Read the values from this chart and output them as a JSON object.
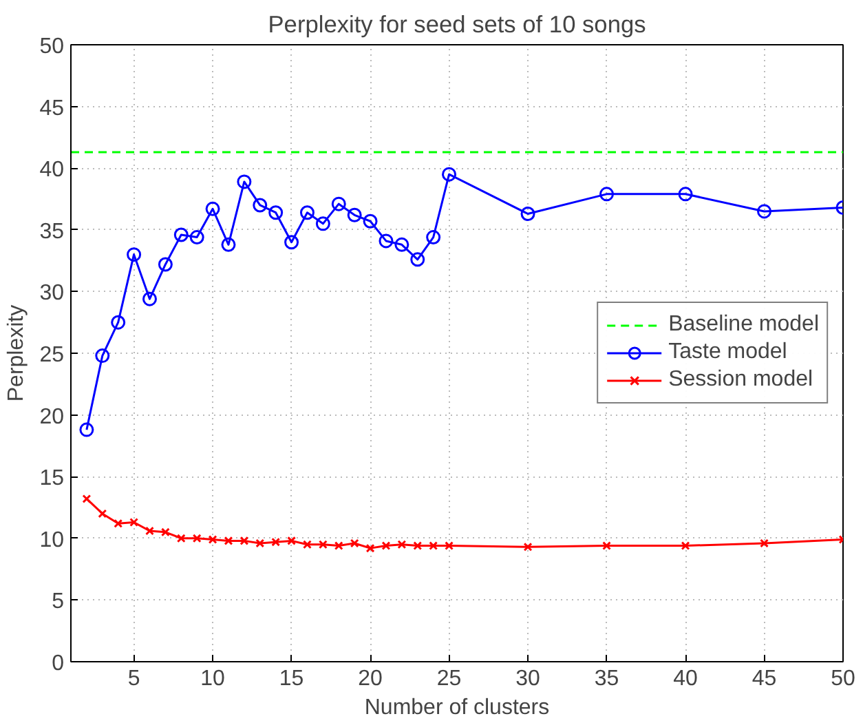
{
  "chart_data": {
    "type": "line",
    "title": "Perplexity for seed sets of 10 songs",
    "xlabel": "Number of clusters",
    "ylabel": "Perplexity",
    "xlim": [
      1,
      50
    ],
    "xticks": [
      5,
      10,
      15,
      20,
      25,
      30,
      35,
      40,
      45,
      50
    ],
    "ylim": [
      0,
      50
    ],
    "yticks": [
      0,
      5,
      10,
      15,
      20,
      25,
      30,
      35,
      40,
      45,
      50
    ],
    "grid": true,
    "legend": "right",
    "series": [
      {
        "name": "Baseline model",
        "color": "#00ff00",
        "x": [
          1,
          50
        ],
        "values": [
          41.3,
          41.3
        ],
        "line_style": "dashed",
        "marker": "none"
      },
      {
        "name": "Taste model",
        "color": "#0000ff",
        "x": [
          2,
          3,
          4,
          5,
          6,
          7,
          8,
          9,
          10,
          11,
          12,
          13,
          14,
          15,
          16,
          17,
          18,
          19,
          20,
          21,
          22,
          23,
          24,
          25,
          30,
          35,
          40,
          45,
          50
        ],
        "values": [
          18.8,
          24.8,
          27.5,
          33,
          29.4,
          32.2,
          34.6,
          34.4,
          36.7,
          33.8,
          38.9,
          37,
          36.4,
          34,
          36.4,
          35.5,
          37.1,
          36.2,
          35.7,
          34.1,
          33.8,
          32.6,
          34.4,
          39.5,
          36.3,
          37.9,
          37.9,
          36.5,
          36.8
        ],
        "line_style": "solid",
        "marker": "circle"
      },
      {
        "name": "Session model",
        "color": "#ff0000",
        "x": [
          2,
          3,
          4,
          5,
          6,
          7,
          8,
          9,
          10,
          11,
          12,
          13,
          14,
          15,
          16,
          17,
          18,
          19,
          20,
          21,
          22,
          23,
          24,
          25,
          30,
          35,
          40,
          45,
          50
        ],
        "values": [
          13.2,
          12,
          11.2,
          11.3,
          10.6,
          10.5,
          10,
          10,
          9.9,
          9.8,
          9.8,
          9.6,
          9.7,
          9.8,
          9.5,
          9.5,
          9.4,
          9.6,
          9.2,
          9.4,
          9.5,
          9.4,
          9.4,
          9.4,
          9.3,
          9.4,
          9.4,
          9.6,
          9.9
        ],
        "line_style": "solid",
        "marker": "cross"
      }
    ]
  }
}
